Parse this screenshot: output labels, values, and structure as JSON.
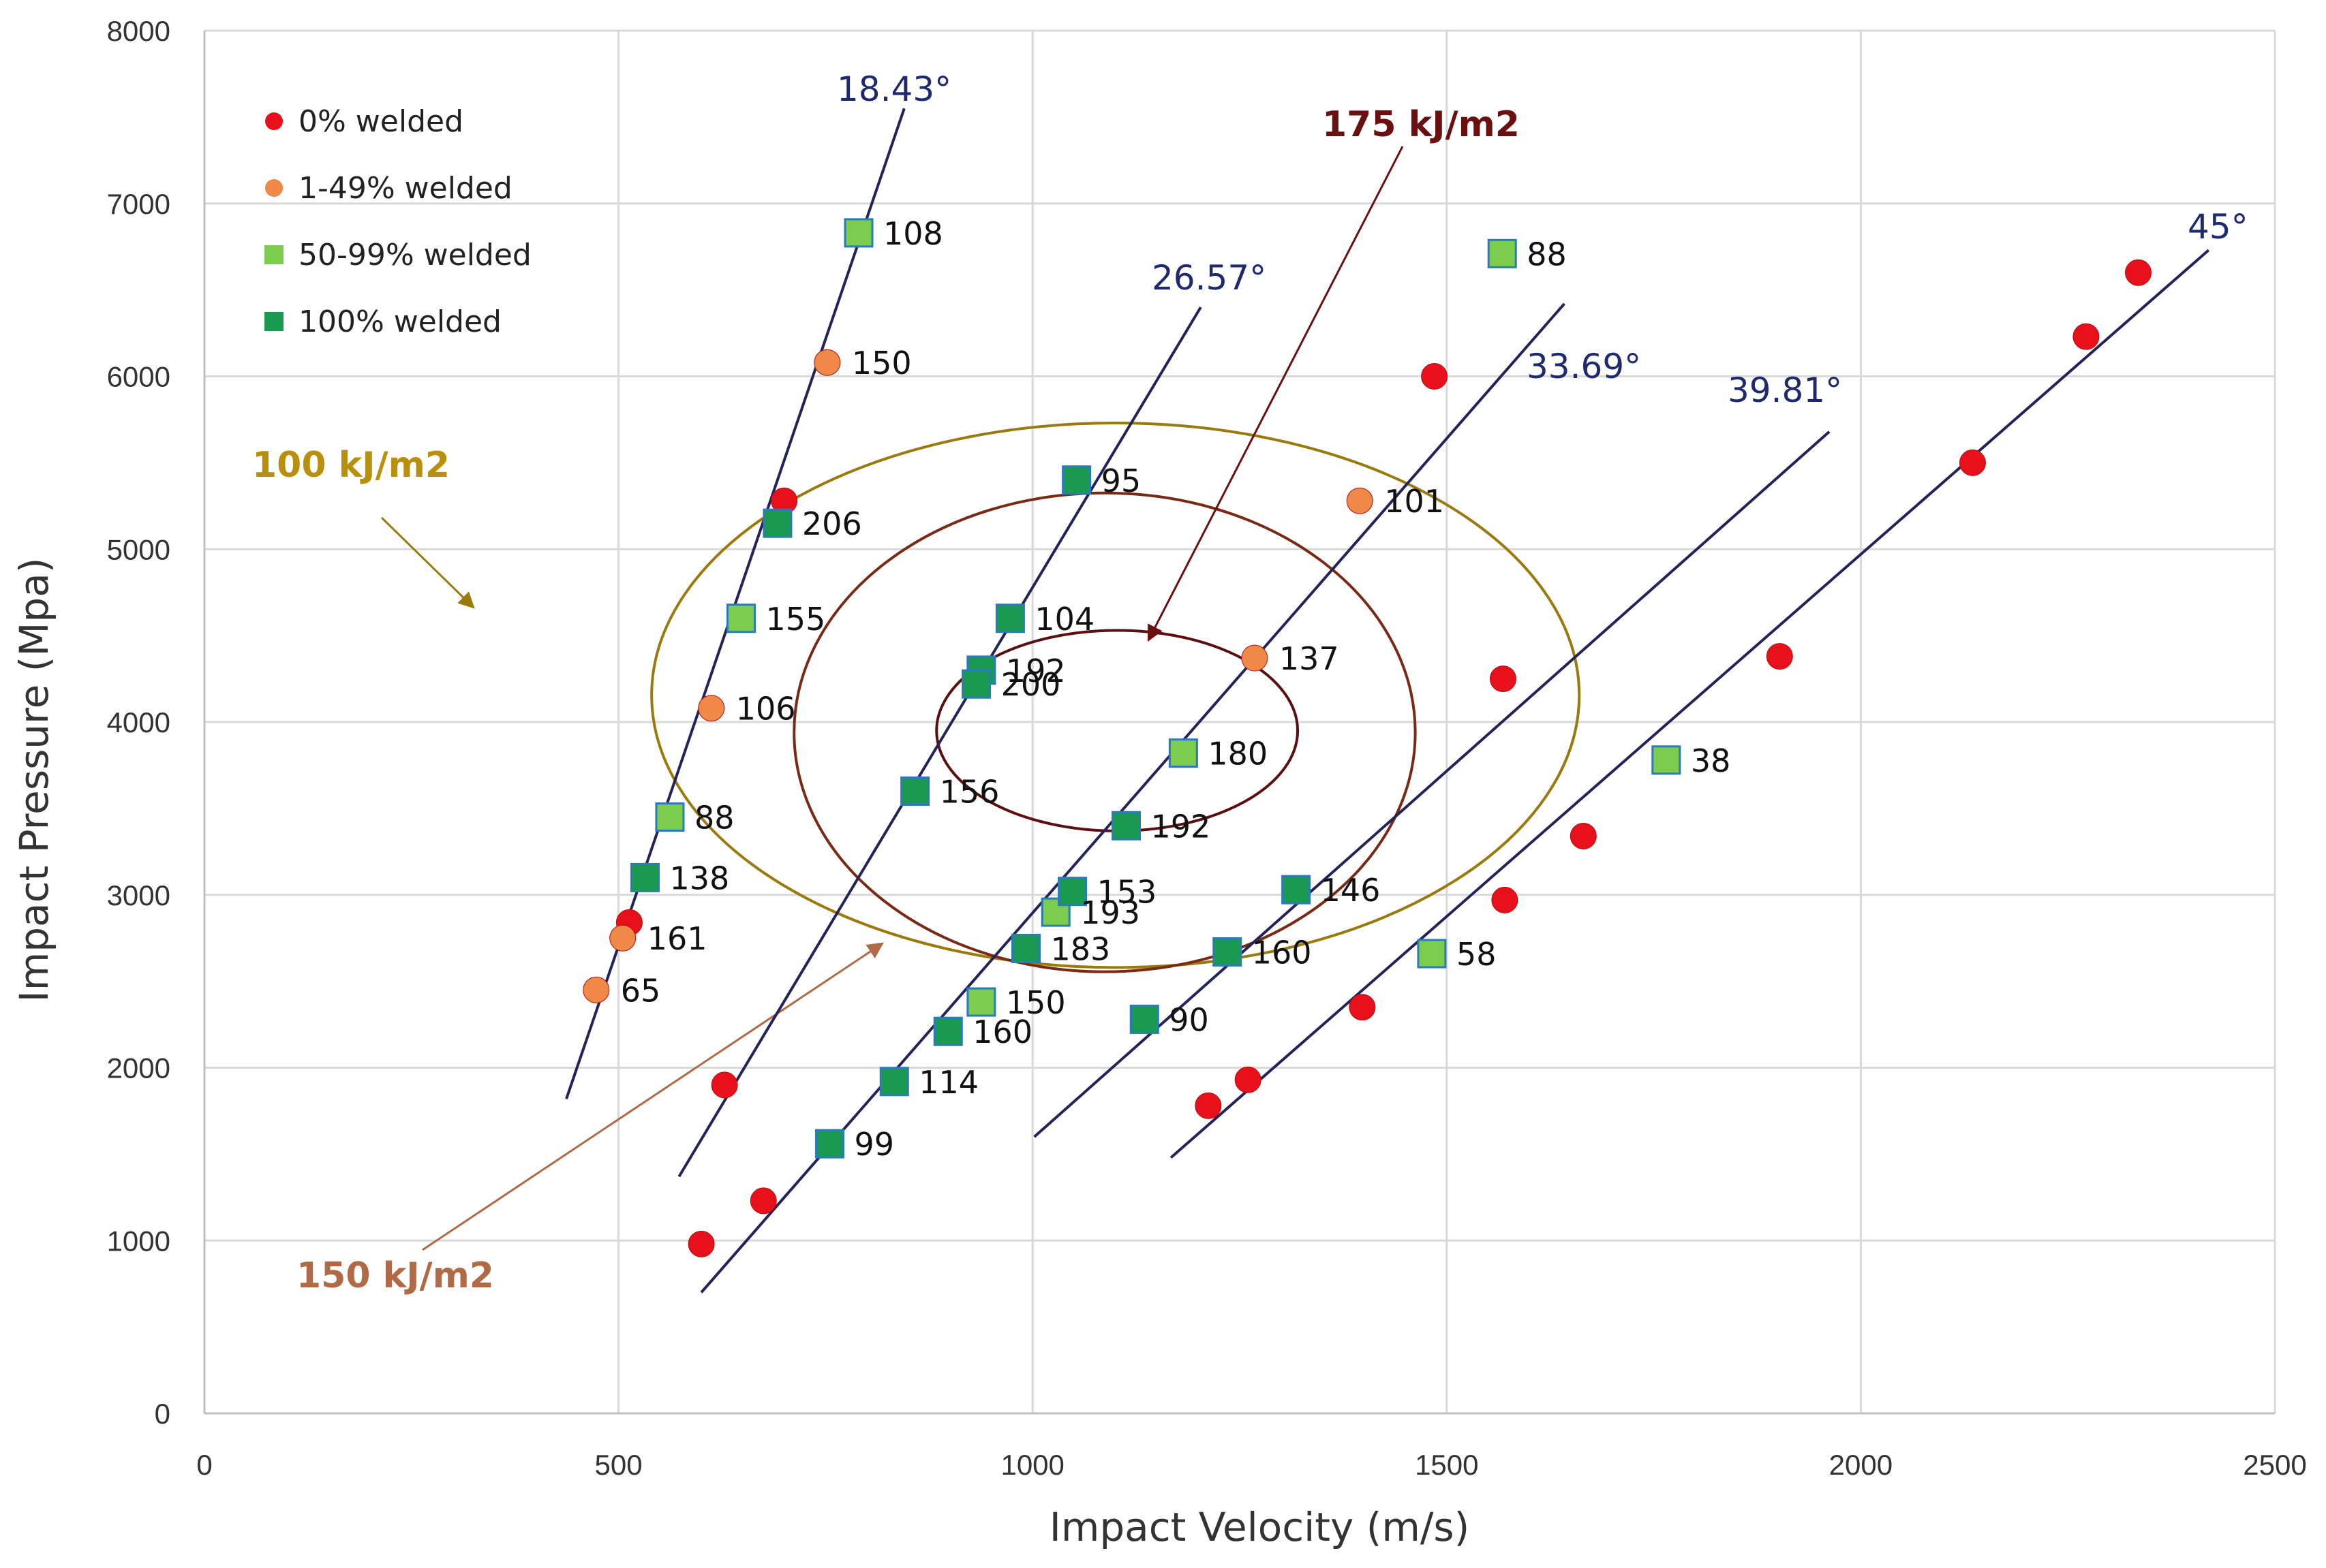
{
  "chart_data": {
    "type": "scatter",
    "title": "",
    "xlabel": "Impact Velocity (m/s)",
    "ylabel": "Impact Pressure (Mpa)",
    "xlim": [
      0,
      2500
    ],
    "ylim": [
      0,
      8000
    ],
    "xticks": [
      0,
      500,
      1000,
      1500,
      2000,
      2500
    ],
    "yticks": [
      0,
      1000,
      2000,
      3000,
      4000,
      5000,
      6000,
      7000,
      8000
    ],
    "grid": true,
    "legend_position": "top-left",
    "series": [
      {
        "name": "0% welded",
        "marker": "circle",
        "color": "#e8101a",
        "points": [
          {
            "x": 600,
            "y": 980
          },
          {
            "x": 675,
            "y": 1230
          },
          {
            "x": 628,
            "y": 1900
          },
          {
            "x": 513,
            "y": 2840
          },
          {
            "x": 700,
            "y": 5280
          },
          {
            "x": 1485,
            "y": 6000
          },
          {
            "x": 1398,
            "y": 2350
          },
          {
            "x": 1212,
            "y": 1780
          },
          {
            "x": 1260,
            "y": 1930
          },
          {
            "x": 1570,
            "y": 2970
          },
          {
            "x": 1665,
            "y": 3340
          },
          {
            "x": 1568,
            "y": 4250
          },
          {
            "x": 1902,
            "y": 4380
          },
          {
            "x": 2135,
            "y": 5500
          },
          {
            "x": 2272,
            "y": 6230
          },
          {
            "x": 2335,
            "y": 6600
          }
        ]
      },
      {
        "name": "1-49% welded",
        "marker": "circle",
        "color": "#f08848",
        "points": [
          {
            "x": 752,
            "y": 6080,
            "label": "150"
          },
          {
            "x": 612,
            "y": 4080,
            "label": "106"
          },
          {
            "x": 505,
            "y": 2750,
            "label": "161"
          },
          {
            "x": 473,
            "y": 2450,
            "label": "65"
          },
          {
            "x": 1395,
            "y": 5280,
            "label": "101"
          },
          {
            "x": 1268,
            "y": 4370,
            "label": "137"
          }
        ]
      },
      {
        "name": "50-99% welded",
        "marker": "square",
        "color": "#7ccc4e",
        "points": [
          {
            "x": 790,
            "y": 6830,
            "label": "108"
          },
          {
            "x": 1567,
            "y": 6710,
            "label": "88"
          },
          {
            "x": 648,
            "y": 4600,
            "label": "155"
          },
          {
            "x": 562,
            "y": 3450,
            "label": "88"
          },
          {
            "x": 1182,
            "y": 3820,
            "label": "180"
          },
          {
            "x": 1028,
            "y": 2900,
            "label": "193"
          },
          {
            "x": 938,
            "y": 2380,
            "label": "150"
          },
          {
            "x": 1765,
            "y": 3780,
            "label": "38"
          },
          {
            "x": 1482,
            "y": 2660,
            "label": "58"
          }
        ]
      },
      {
        "name": "100% welded",
        "marker": "square",
        "color": "#1a9a50",
        "points": [
          {
            "x": 1053,
            "y": 5400,
            "label": "95"
          },
          {
            "x": 692,
            "y": 5150,
            "label": "206"
          },
          {
            "x": 973,
            "y": 4600,
            "label": "104"
          },
          {
            "x": 938,
            "y": 4300,
            "label": "192"
          },
          {
            "x": 932,
            "y": 4220,
            "label": "200"
          },
          {
            "x": 858,
            "y": 3600,
            "label": "156"
          },
          {
            "x": 1113,
            "y": 3400,
            "label": "192"
          },
          {
            "x": 532,
            "y": 3100,
            "label": "138"
          },
          {
            "x": 1048,
            "y": 3020,
            "label": "153"
          },
          {
            "x": 1318,
            "y": 3030,
            "label": "146"
          },
          {
            "x": 992,
            "y": 2690,
            "label": "183"
          },
          {
            "x": 1235,
            "y": 2670,
            "label": "160"
          },
          {
            "x": 898,
            "y": 2210,
            "label": "160"
          },
          {
            "x": 1135,
            "y": 2280,
            "label": "90"
          },
          {
            "x": 833,
            "y": 1920,
            "label": "114"
          },
          {
            "x": 755,
            "y": 1560,
            "label": "99"
          }
        ]
      }
    ],
    "angle_lines": [
      {
        "label": "18.43°",
        "from": [
          437,
          1820
        ],
        "to": [
          845,
          7550
        ]
      },
      {
        "label": "26.57°",
        "from": [
          573,
          1370
        ],
        "to": [
          1203,
          6400
        ]
      },
      {
        "label": "33.69°",
        "from": [
          600,
          700
        ],
        "to": [
          1642,
          6420
        ]
      },
      {
        "label": "39.81°",
        "from": [
          1002,
          1600
        ],
        "to": [
          1962,
          5680
        ]
      },
      {
        "label": "45°",
        "from": [
          1167,
          1480
        ],
        "to": [
          2420,
          6730
        ]
      }
    ],
    "energy_contours": [
      {
        "label": "100 kJ/m2",
        "center": [
          1100,
          4155
        ],
        "rx": 560,
        "ry": 1575,
        "color": "#9a7a0c",
        "label_color": "#b8900e"
      },
      {
        "label": "150 kJ/m2",
        "center": [
          1087,
          3940
        ],
        "rx": 375,
        "ry": 1385,
        "color": "#7a2a14",
        "label_color": "#b06a46"
      },
      {
        "label": "175 kJ/m2",
        "center": [
          1102,
          3950
        ],
        "rx": 218,
        "ry": 580,
        "color": "#5a1010",
        "label_color": "#6a1010"
      }
    ]
  },
  "colors": {
    "angle_line": "#23235a",
    "angle_label": "#1f2a6e",
    "grid": "#d9d9d9",
    "axis": "#bfbfbf"
  }
}
